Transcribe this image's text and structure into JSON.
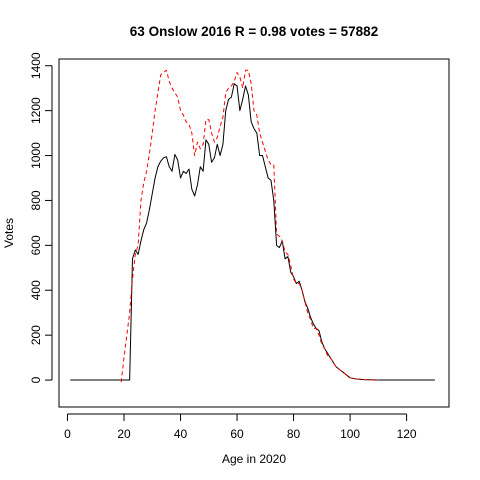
{
  "chart_data": {
    "type": "line",
    "title": "63 Onslow 2016 R = 0.98 votes = 57882",
    "xlabel": "Age in 2020",
    "ylabel": "Votes",
    "xlim": [
      -3,
      135
    ],
    "ylim": [
      -120,
      1430
    ],
    "xticks": [
      0,
      20,
      40,
      60,
      80,
      100,
      120
    ],
    "yticks": [
      0,
      200,
      400,
      600,
      800,
      1000,
      1200,
      1400
    ],
    "grid": false,
    "series": [
      {
        "color": "#000000",
        "dash": "solid",
        "points": [
          [
            1,
            0
          ],
          [
            10,
            0
          ],
          [
            22,
            0
          ],
          [
            23,
            540
          ],
          [
            24,
            580
          ],
          [
            25,
            560
          ],
          [
            26,
            620
          ],
          [
            27,
            670
          ],
          [
            28,
            700
          ],
          [
            29,
            760
          ],
          [
            30,
            830
          ],
          [
            31,
            900
          ],
          [
            32,
            950
          ],
          [
            33,
            975
          ],
          [
            34,
            990
          ],
          [
            35,
            995
          ],
          [
            36,
            950
          ],
          [
            37,
            930
          ],
          [
            38,
            1005
          ],
          [
            39,
            980
          ],
          [
            40,
            900
          ],
          [
            41,
            930
          ],
          [
            42,
            920
          ],
          [
            43,
            940
          ],
          [
            44,
            850
          ],
          [
            45,
            820
          ],
          [
            46,
            870
          ],
          [
            47,
            950
          ],
          [
            48,
            930
          ],
          [
            49,
            1070
          ],
          [
            50,
            1050
          ],
          [
            51,
            970
          ],
          [
            52,
            990
          ],
          [
            53,
            1050
          ],
          [
            54,
            1000
          ],
          [
            55,
            1050
          ],
          [
            56,
            1200
          ],
          [
            57,
            1250
          ],
          [
            58,
            1260
          ],
          [
            59,
            1320
          ],
          [
            60,
            1310
          ],
          [
            61,
            1200
          ],
          [
            62,
            1250
          ],
          [
            63,
            1310
          ],
          [
            64,
            1270
          ],
          [
            65,
            1150
          ],
          [
            66,
            1120
          ],
          [
            67,
            1100
          ],
          [
            68,
            1000
          ],
          [
            69,
            1000
          ],
          [
            70,
            950
          ],
          [
            71,
            900
          ],
          [
            72,
            890
          ],
          [
            73,
            800
          ],
          [
            74,
            600
          ],
          [
            75,
            590
          ],
          [
            76,
            620
          ],
          [
            77,
            540
          ],
          [
            78,
            550
          ],
          [
            79,
            480
          ],
          [
            80,
            460
          ],
          [
            81,
            430
          ],
          [
            82,
            440
          ],
          [
            83,
            400
          ],
          [
            84,
            350
          ],
          [
            85,
            320
          ],
          [
            86,
            280
          ],
          [
            87,
            250
          ],
          [
            88,
            230
          ],
          [
            89,
            220
          ],
          [
            90,
            170
          ],
          [
            91,
            140
          ],
          [
            92,
            120
          ],
          [
            93,
            100
          ],
          [
            94,
            80
          ],
          [
            95,
            60
          ],
          [
            96,
            50
          ],
          [
            97,
            40
          ],
          [
            98,
            30
          ],
          [
            99,
            20
          ],
          [
            100,
            10
          ],
          [
            102,
            5
          ],
          [
            105,
            2
          ],
          [
            110,
            0
          ],
          [
            120,
            0
          ],
          [
            130,
            0
          ]
        ]
      },
      {
        "color": "#ff0000",
        "dash": "dashed",
        "points": [
          [
            19,
            -10
          ],
          [
            20,
            100
          ],
          [
            21,
            200
          ],
          [
            22,
            300
          ],
          [
            23,
            450
          ],
          [
            24,
            560
          ],
          [
            25,
            600
          ],
          [
            26,
            800
          ],
          [
            27,
            880
          ],
          [
            28,
            930
          ],
          [
            29,
            1010
          ],
          [
            30,
            1100
          ],
          [
            31,
            1200
          ],
          [
            32,
            1280
          ],
          [
            33,
            1360
          ],
          [
            34,
            1370
          ],
          [
            35,
            1380
          ],
          [
            36,
            1330
          ],
          [
            37,
            1300
          ],
          [
            38,
            1280
          ],
          [
            39,
            1260
          ],
          [
            40,
            1200
          ],
          [
            41,
            1180
          ],
          [
            42,
            1150
          ],
          [
            43,
            1140
          ],
          [
            44,
            1100
          ],
          [
            45,
            1000
          ],
          [
            46,
            1060
          ],
          [
            47,
            1030
          ],
          [
            48,
            1050
          ],
          [
            49,
            1160
          ],
          [
            50,
            1160
          ],
          [
            51,
            1100
          ],
          [
            52,
            1060
          ],
          [
            53,
            1080
          ],
          [
            54,
            1130
          ],
          [
            55,
            1170
          ],
          [
            56,
            1280
          ],
          [
            57,
            1300
          ],
          [
            58,
            1310
          ],
          [
            59,
            1330
          ],
          [
            60,
            1370
          ],
          [
            61,
            1350
          ],
          [
            62,
            1300
          ],
          [
            63,
            1380
          ],
          [
            64,
            1380
          ],
          [
            65,
            1320
          ],
          [
            66,
            1200
          ],
          [
            67,
            1180
          ],
          [
            68,
            1100
          ],
          [
            69,
            1060
          ],
          [
            70,
            1020
          ],
          [
            71,
            980
          ],
          [
            72,
            960
          ],
          [
            73,
            960
          ],
          [
            74,
            650
          ],
          [
            75,
            640
          ],
          [
            76,
            620
          ],
          [
            77,
            570
          ],
          [
            78,
            560
          ],
          [
            79,
            510
          ],
          [
            80,
            450
          ],
          [
            81,
            430
          ],
          [
            82,
            430
          ],
          [
            83,
            400
          ],
          [
            84,
            350
          ],
          [
            85,
            300
          ],
          [
            86,
            270
          ],
          [
            87,
            230
          ],
          [
            88,
            230
          ],
          [
            89,
            200
          ],
          [
            90,
            160
          ],
          [
            91,
            140
          ],
          [
            92,
            110
          ],
          [
            93,
            100
          ],
          [
            94,
            80
          ],
          [
            95,
            60
          ],
          [
            96,
            50
          ],
          [
            97,
            40
          ],
          [
            98,
            30
          ],
          [
            99,
            20
          ],
          [
            100,
            10
          ],
          [
            102,
            5
          ],
          [
            105,
            2
          ],
          [
            110,
            0
          ]
        ]
      }
    ]
  }
}
